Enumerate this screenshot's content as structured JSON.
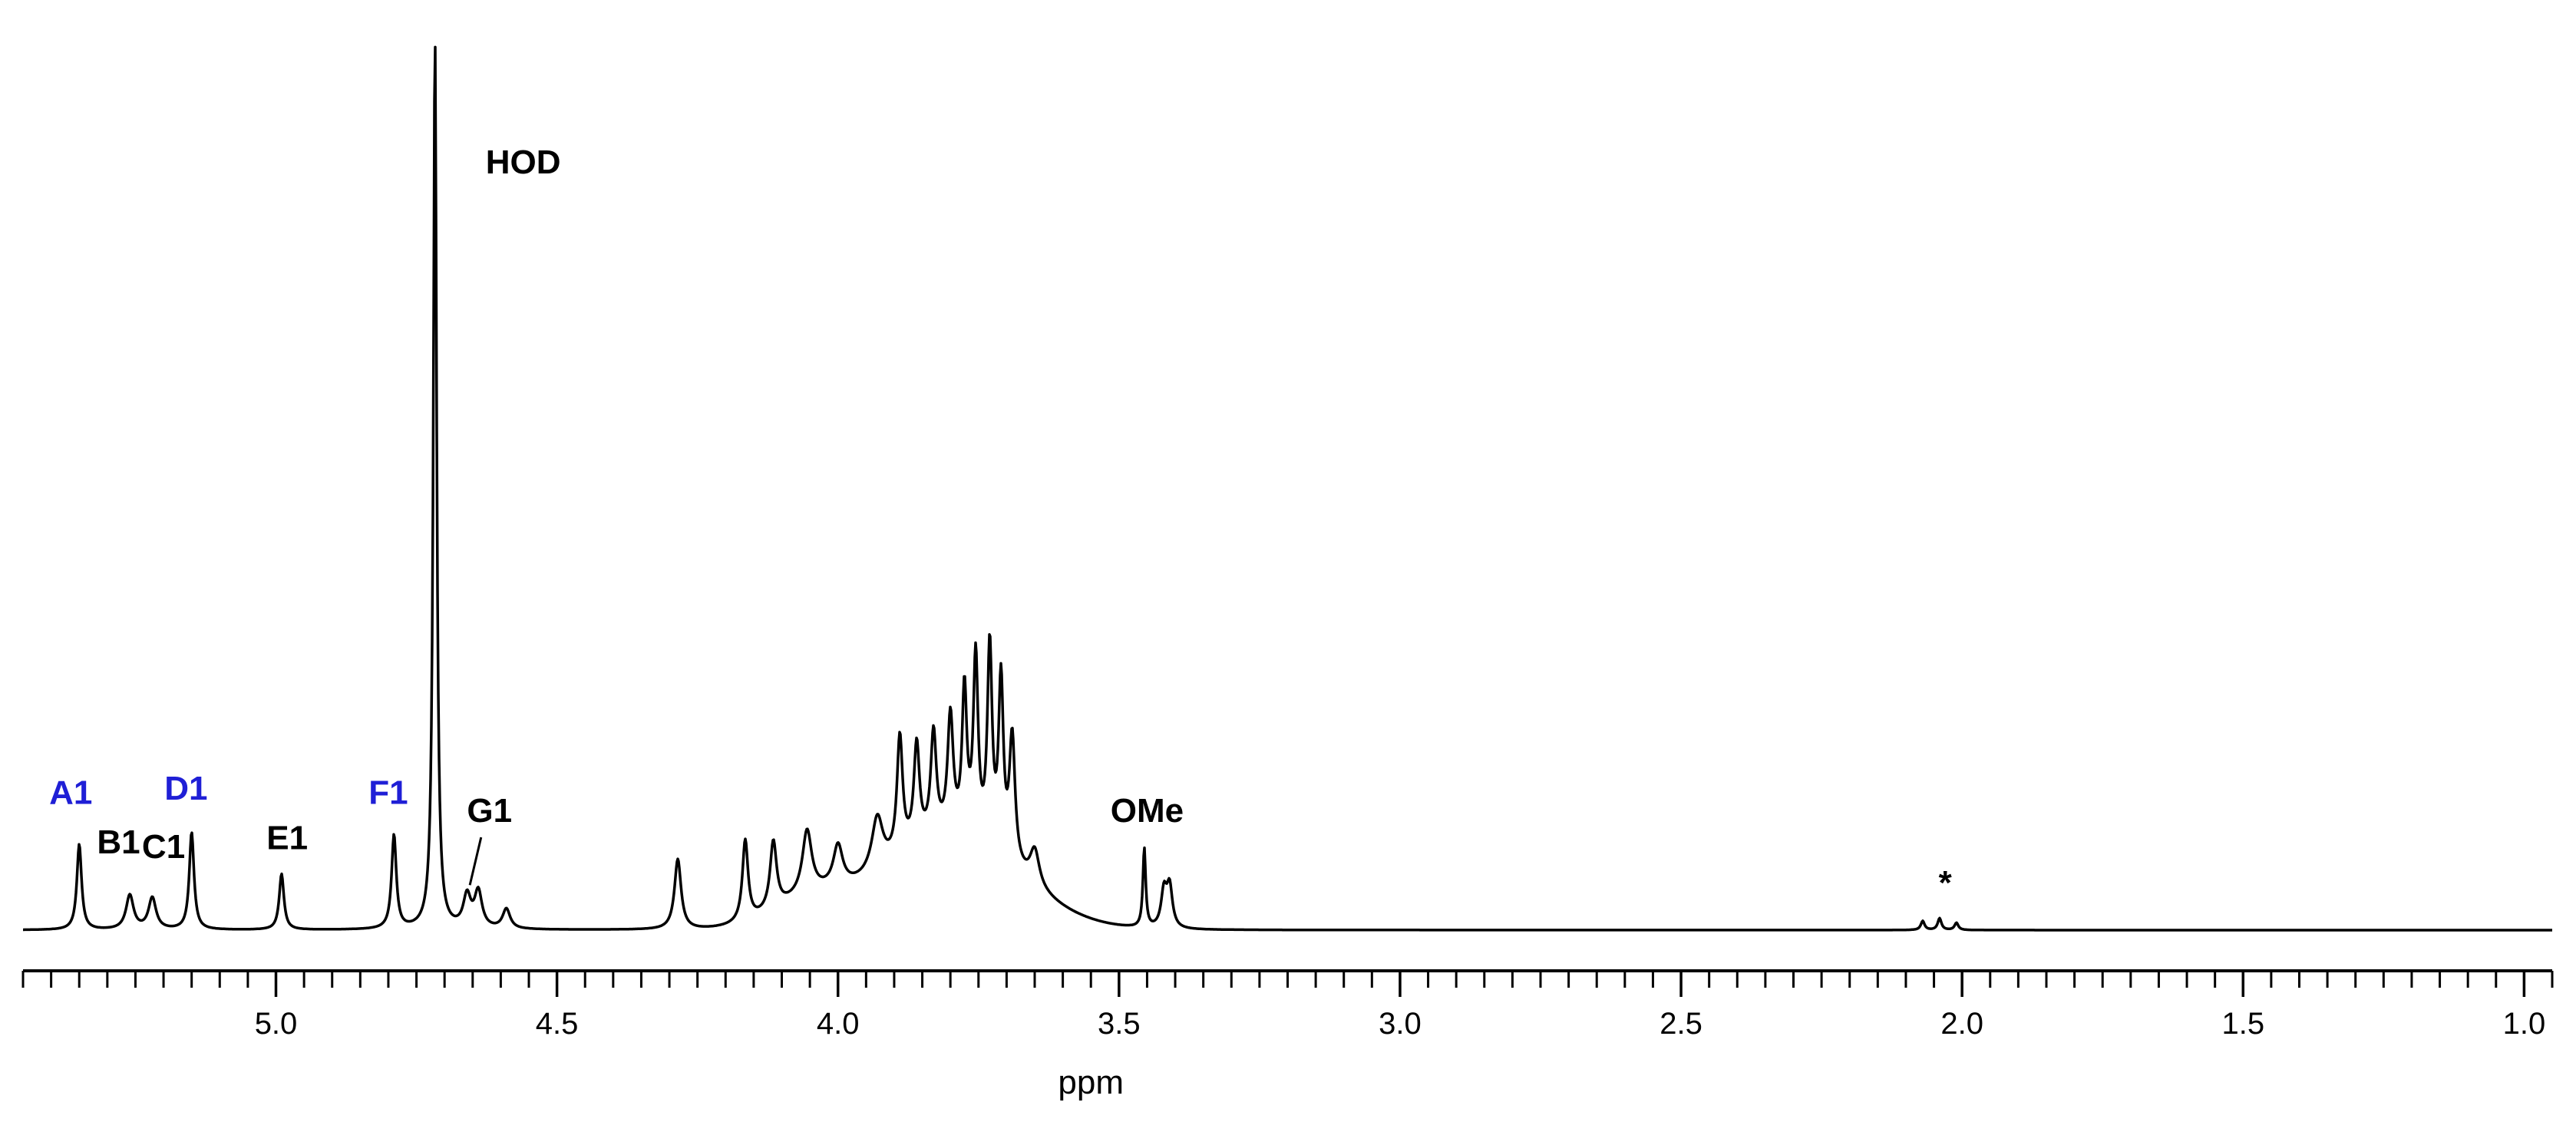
{
  "chart_data": {
    "type": "line",
    "xlabel": "ppm",
    "ylabel": "",
    "x_reversed": true,
    "xlim": [
      5.45,
      0.95
    ],
    "ylim": [
      0,
      1.0
    ],
    "grid": false,
    "major_ticks": [
      5.0,
      4.5,
      4.0,
      3.5,
      3.0,
      2.5,
      2.0,
      1.5,
      1.0
    ],
    "tick_labels": [
      "5.0",
      "4.5",
      "4.0",
      "3.5",
      "3.0",
      "2.5",
      "2.0",
      "1.5",
      "1.0"
    ],
    "minor_tick_step": 0.05,
    "colors": {
      "trace": "#000000",
      "label_black": "#000000",
      "label_blue": "#1f1fd6"
    },
    "peaks": [
      {
        "ppm": 5.35,
        "height": 0.095,
        "width": 0.005
      },
      {
        "ppm": 5.26,
        "height": 0.038,
        "width": 0.008
      },
      {
        "ppm": 5.22,
        "height": 0.035,
        "width": 0.008
      },
      {
        "ppm": 5.15,
        "height": 0.108,
        "width": 0.005
      },
      {
        "ppm": 4.99,
        "height": 0.062,
        "width": 0.005
      },
      {
        "ppm": 4.79,
        "height": 0.104,
        "width": 0.005
      },
      {
        "ppm": 4.717,
        "height": 0.99,
        "width": 0.0035
      },
      {
        "ppm": 4.66,
        "height": 0.035,
        "width": 0.008
      },
      {
        "ppm": 4.64,
        "height": 0.04,
        "width": 0.008
      },
      {
        "ppm": 4.59,
        "height": 0.022,
        "width": 0.008
      },
      {
        "ppm": 4.285,
        "height": 0.078,
        "width": 0.007
      },
      {
        "ppm": 4.165,
        "height": 0.09,
        "width": 0.006
      },
      {
        "ppm": 4.115,
        "height": 0.075,
        "width": 0.007
      },
      {
        "ppm": 4.055,
        "height": 0.07,
        "width": 0.01
      },
      {
        "ppm": 4.0,
        "height": 0.045,
        "width": 0.01
      },
      {
        "ppm": 3.93,
        "height": 0.06,
        "width": 0.012
      },
      {
        "ppm": 3.89,
        "height": 0.13,
        "width": 0.006
      },
      {
        "ppm": 3.86,
        "height": 0.11,
        "width": 0.006
      },
      {
        "ppm": 3.83,
        "height": 0.115,
        "width": 0.006
      },
      {
        "ppm": 3.8,
        "height": 0.13,
        "width": 0.006
      },
      {
        "ppm": 3.775,
        "height": 0.16,
        "width": 0.005
      },
      {
        "ppm": 3.755,
        "height": 0.2,
        "width": 0.005
      },
      {
        "ppm": 3.73,
        "height": 0.22,
        "width": 0.005
      },
      {
        "ppm": 3.71,
        "height": 0.19,
        "width": 0.005
      },
      {
        "ppm": 3.69,
        "height": 0.14,
        "width": 0.006
      },
      {
        "ppm": 3.65,
        "height": 0.04,
        "width": 0.01
      },
      {
        "ppm": 3.455,
        "height": 0.088,
        "width": 0.003
      },
      {
        "ppm": 3.42,
        "height": 0.04,
        "width": 0.006
      },
      {
        "ppm": 3.41,
        "height": 0.045,
        "width": 0.006
      },
      {
        "ppm": 2.07,
        "height": 0.01,
        "width": 0.004
      },
      {
        "ppm": 2.04,
        "height": 0.013,
        "width": 0.004
      },
      {
        "ppm": 2.01,
        "height": 0.008,
        "width": 0.004
      }
    ],
    "broad_humps": [
      {
        "ppm": 3.8,
        "height": 0.1,
        "width": 0.12
      },
      {
        "ppm": 4.05,
        "height": 0.028,
        "width": 0.07
      }
    ],
    "annotations": [
      {
        "text": "A1",
        "ppm": 5.365,
        "level": 0.14,
        "color": "blue"
      },
      {
        "text": "B1",
        "ppm": 5.28,
        "level": 0.085,
        "color": "black"
      },
      {
        "text": "C1",
        "ppm": 5.2,
        "level": 0.08,
        "color": "black"
      },
      {
        "text": "D1",
        "ppm": 5.16,
        "level": 0.145,
        "color": "blue"
      },
      {
        "text": "E1",
        "ppm": 4.98,
        "level": 0.09,
        "color": "black"
      },
      {
        "text": "F1",
        "ppm": 4.8,
        "level": 0.14,
        "color": "blue"
      },
      {
        "text": "G1",
        "ppm": 4.62,
        "level": 0.12,
        "color": "black"
      },
      {
        "text": "HOD",
        "ppm": 4.56,
        "level": 0.84,
        "color": "black"
      },
      {
        "text": "OMe",
        "ppm": 3.45,
        "level": 0.12,
        "color": "black"
      },
      {
        "text": "*",
        "ppm": 2.03,
        "level": 0.04,
        "color": "black"
      }
    ]
  }
}
